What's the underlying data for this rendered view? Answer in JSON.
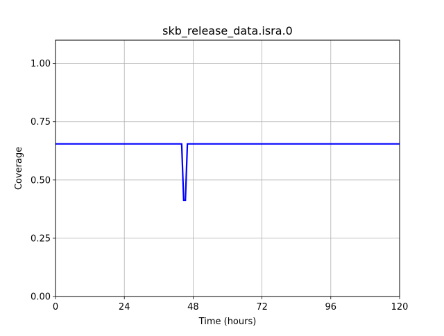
{
  "chart_data": {
    "type": "line",
    "title": "skb_release_data.isra.0",
    "xlabel": "Time (hours)",
    "ylabel": "Coverage",
    "xlim": [
      0,
      120
    ],
    "ylim": [
      0,
      1.1
    ],
    "xticks": [
      0,
      24,
      48,
      72,
      96,
      120
    ],
    "xtick_labels": [
      "0",
      "24",
      "48",
      "72",
      "96",
      "120"
    ],
    "yticks": [
      0,
      0.25,
      0.5,
      0.75,
      1.0
    ],
    "ytick_labels": [
      "0.00",
      "0.25",
      "0.50",
      "0.75",
      "1.00"
    ],
    "grid": true,
    "series": [
      {
        "color": "#0000ff",
        "x": [
          0,
          44.0,
          44.7,
          45.3,
          46.0,
          120
        ],
        "y": [
          0.655,
          0.655,
          0.413,
          0.413,
          0.655,
          0.655
        ]
      }
    ]
  }
}
